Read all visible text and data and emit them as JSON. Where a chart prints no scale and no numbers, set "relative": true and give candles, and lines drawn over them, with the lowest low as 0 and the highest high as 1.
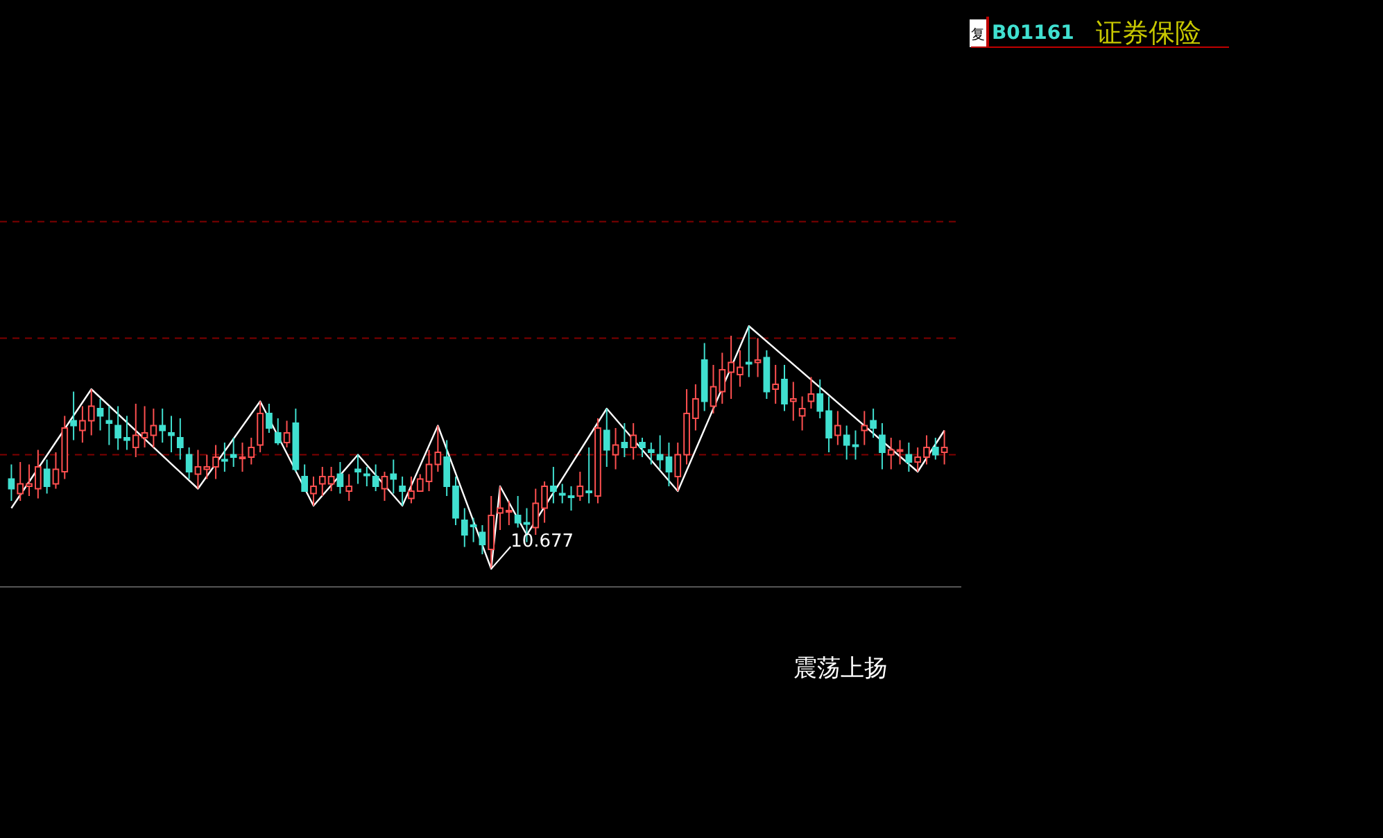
{
  "chart_data": {
    "type": "candlestick",
    "title": "证券保险",
    "subtitle": "B01161",
    "relative": true,
    "categories": [
      null,
      null,
      null,
      null,
      null,
      null,
      null,
      null,
      null,
      null,
      null,
      null,
      null,
      null,
      null,
      null,
      null,
      null,
      null,
      null,
      null,
      null,
      null,
      null,
      null,
      null,
      null,
      null,
      null,
      null,
      null,
      null,
      null,
      null,
      null,
      null,
      null,
      null,
      null,
      null,
      null,
      null,
      null,
      null,
      null,
      null,
      null,
      null,
      null,
      null,
      null,
      null,
      null,
      null,
      null,
      null,
      null,
      null,
      null,
      null,
      null,
      null,
      null,
      null,
      null,
      null,
      null,
      null,
      null,
      null,
      null,
      null,
      null,
      null,
      null,
      null,
      null,
      null,
      null,
      null,
      null,
      null,
      null,
      null,
      null,
      null,
      null,
      null,
      null,
      null,
      null,
      null,
      null,
      null,
      null,
      null,
      null,
      null,
      null,
      null,
      null,
      null,
      null,
      null,
      null,
      null
    ],
    "ohlc": [
      [
        0.37,
        0.43,
        0.28,
        0.33
      ],
      [
        0.31,
        0.44,
        0.28,
        0.35
      ],
      [
        0.34,
        0.43,
        0.3,
        0.35
      ],
      [
        0.33,
        0.49,
        0.29,
        0.42
      ],
      [
        0.41,
        0.45,
        0.31,
        0.34
      ],
      [
        0.35,
        0.48,
        0.33,
        0.41
      ],
      [
        0.4,
        0.63,
        0.37,
        0.58
      ],
      [
        0.61,
        0.73,
        0.53,
        0.59
      ],
      [
        0.57,
        0.67,
        0.52,
        0.61
      ],
      [
        0.61,
        0.74,
        0.55,
        0.67
      ],
      [
        0.66,
        0.7,
        0.57,
        0.63
      ],
      [
        0.61,
        0.67,
        0.51,
        0.6
      ],
      [
        0.59,
        0.67,
        0.49,
        0.54
      ],
      [
        0.54,
        0.63,
        0.49,
        0.53
      ],
      [
        0.5,
        0.68,
        0.46,
        0.55
      ],
      [
        0.54,
        0.67,
        0.5,
        0.56
      ],
      [
        0.55,
        0.66,
        0.5,
        0.59
      ],
      [
        0.59,
        0.66,
        0.52,
        0.57
      ],
      [
        0.56,
        0.63,
        0.48,
        0.55
      ],
      [
        0.54,
        0.62,
        0.45,
        0.5
      ],
      [
        0.47,
        0.5,
        0.37,
        0.4
      ],
      [
        0.39,
        0.49,
        0.33,
        0.42
      ],
      [
        0.41,
        0.47,
        0.37,
        0.42
      ],
      [
        0.42,
        0.51,
        0.37,
        0.46
      ],
      [
        0.45,
        0.52,
        0.4,
        0.45
      ],
      [
        0.47,
        0.54,
        0.42,
        0.46
      ],
      [
        0.46,
        0.52,
        0.4,
        0.46
      ],
      [
        0.46,
        0.54,
        0.43,
        0.5
      ],
      [
        0.51,
        0.69,
        0.48,
        0.64
      ],
      [
        0.64,
        0.68,
        0.56,
        0.58
      ],
      [
        0.56,
        0.62,
        0.51,
        0.52
      ],
      [
        0.52,
        0.61,
        0.5,
        0.56
      ],
      [
        0.6,
        0.66,
        0.4,
        0.41
      ],
      [
        0.38,
        0.43,
        0.32,
        0.32
      ],
      [
        0.31,
        0.38,
        0.26,
        0.34
      ],
      [
        0.35,
        0.42,
        0.3,
        0.38
      ],
      [
        0.35,
        0.42,
        0.32,
        0.38
      ],
      [
        0.39,
        0.44,
        0.31,
        0.34
      ],
      [
        0.32,
        0.39,
        0.28,
        0.34
      ],
      [
        0.41,
        0.47,
        0.35,
        0.4
      ],
      [
        0.39,
        0.42,
        0.34,
        0.39
      ],
      [
        0.38,
        0.43,
        0.32,
        0.34
      ],
      [
        0.33,
        0.4,
        0.28,
        0.38
      ],
      [
        0.39,
        0.45,
        0.31,
        0.37
      ],
      [
        0.34,
        0.38,
        0.26,
        0.32
      ],
      [
        0.29,
        0.38,
        0.27,
        0.32
      ],
      [
        0.32,
        0.39,
        0.32,
        0.37
      ],
      [
        0.36,
        0.49,
        0.32,
        0.43
      ],
      [
        0.43,
        0.59,
        0.4,
        0.48
      ],
      [
        0.46,
        0.53,
        0.3,
        0.34
      ],
      [
        0.34,
        0.38,
        0.18,
        0.21
      ],
      [
        0.2,
        0.25,
        0.09,
        0.14
      ],
      [
        0.18,
        0.21,
        0.11,
        0.18
      ],
      [
        0.15,
        0.18,
        0.06,
        0.1
      ],
      [
        0.08,
        0.3,
        0.0,
        0.22
      ],
      [
        0.23,
        0.34,
        0.16,
        0.25
      ],
      [
        0.24,
        0.28,
        0.18,
        0.24
      ],
      [
        0.22,
        0.3,
        0.17,
        0.19
      ],
      [
        0.19,
        0.25,
        0.11,
        0.19
      ],
      [
        0.17,
        0.33,
        0.14,
        0.27
      ],
      [
        0.25,
        0.36,
        0.19,
        0.34
      ],
      [
        0.34,
        0.42,
        0.27,
        0.32
      ],
      [
        0.31,
        0.35,
        0.27,
        0.31
      ],
      [
        0.3,
        0.34,
        0.24,
        0.3
      ],
      [
        0.3,
        0.4,
        0.28,
        0.34
      ],
      [
        0.32,
        0.5,
        0.27,
        0.32
      ],
      [
        0.3,
        0.62,
        0.27,
        0.58
      ],
      [
        0.57,
        0.66,
        0.42,
        0.49
      ],
      [
        0.47,
        0.58,
        0.41,
        0.51
      ],
      [
        0.52,
        0.6,
        0.46,
        0.5
      ],
      [
        0.5,
        0.6,
        0.45,
        0.55
      ],
      [
        0.52,
        0.54,
        0.46,
        0.5
      ],
      [
        0.49,
        0.52,
        0.43,
        0.48
      ],
      [
        0.47,
        0.55,
        0.41,
        0.45
      ],
      [
        0.46,
        0.52,
        0.34,
        0.4
      ],
      [
        0.38,
        0.52,
        0.32,
        0.47
      ],
      [
        0.47,
        0.74,
        0.43,
        0.64
      ],
      [
        0.62,
        0.76,
        0.57,
        0.7
      ],
      [
        0.86,
        0.93,
        0.65,
        0.69
      ],
      [
        0.67,
        0.84,
        0.64,
        0.75
      ],
      [
        0.73,
        0.89,
        0.68,
        0.82
      ],
      [
        0.81,
        0.96,
        0.7,
        0.85
      ],
      [
        0.8,
        0.9,
        0.75,
        0.83
      ],
      [
        0.85,
        1.0,
        0.79,
        0.85
      ],
      [
        0.85,
        0.95,
        0.79,
        0.86
      ],
      [
        0.87,
        0.9,
        0.7,
        0.73
      ],
      [
        0.74,
        0.84,
        0.68,
        0.76
      ],
      [
        0.78,
        0.84,
        0.65,
        0.68
      ],
      [
        0.69,
        0.77,
        0.61,
        0.7
      ],
      [
        0.63,
        0.71,
        0.57,
        0.66
      ],
      [
        0.69,
        0.79,
        0.66,
        0.72
      ],
      [
        0.72,
        0.78,
        0.62,
        0.65
      ],
      [
        0.65,
        0.71,
        0.48,
        0.54
      ],
      [
        0.55,
        0.65,
        0.51,
        0.59
      ],
      [
        0.55,
        0.59,
        0.45,
        0.51
      ],
      [
        0.51,
        0.57,
        0.45,
        0.51
      ],
      [
        0.57,
        0.65,
        0.51,
        0.59
      ],
      [
        0.61,
        0.66,
        0.54,
        0.58
      ],
      [
        0.55,
        0.6,
        0.41,
        0.48
      ],
      [
        0.47,
        0.54,
        0.41,
        0.49
      ],
      [
        0.49,
        0.53,
        0.43,
        0.49
      ],
      [
        0.47,
        0.52,
        0.4,
        0.44
      ],
      [
        0.44,
        0.5,
        0.4,
        0.46
      ],
      [
        0.46,
        0.55,
        0.43,
        0.5
      ],
      [
        0.5,
        0.54,
        0.45,
        0.47
      ],
      [
        0.48,
        0.57,
        0.43,
        0.5
      ]
    ],
    "colors": [
      "#40e0d0",
      "#ff5050",
      "#ff5050",
      "#ff5050",
      "#40e0d0",
      "#ff5050",
      "#ff5050",
      "#40e0d0",
      "#ff5050",
      "#ff5050",
      "#40e0d0",
      "#40e0d0",
      "#40e0d0",
      "#40e0d0",
      "#ff5050",
      "#ff5050",
      "#ff5050",
      "#40e0d0",
      "#40e0d0",
      "#40e0d0",
      "#40e0d0",
      "#ff5050",
      "#ff5050",
      "#ff5050",
      "#40e0d0",
      "#40e0d0",
      "#ff5050",
      "#ff5050",
      "#ff5050",
      "#40e0d0",
      "#40e0d0",
      "#ff5050",
      "#40e0d0",
      "#40e0d0",
      "#ff5050",
      "#ff5050",
      "#ff5050",
      "#40e0d0",
      "#ff5050",
      "#40e0d0",
      "#40e0d0",
      "#40e0d0",
      "#ff5050",
      "#40e0d0",
      "#40e0d0",
      "#ff5050",
      "#ff5050",
      "#ff5050",
      "#ff5050",
      "#40e0d0",
      "#40e0d0",
      "#40e0d0",
      "#40e0d0",
      "#40e0d0",
      "#ff5050",
      "#ff5050",
      "#ff5050",
      "#40e0d0",
      "#40e0d0",
      "#ff5050",
      "#ff5050",
      "#40e0d0",
      "#40e0d0",
      "#40e0d0",
      "#ff5050",
      "#40e0d0",
      "#ff5050",
      "#40e0d0",
      "#ff5050",
      "#40e0d0",
      "#ff5050",
      "#40e0d0",
      "#40e0d0",
      "#40e0d0",
      "#40e0d0",
      "#ff5050",
      "#ff5050",
      "#ff5050",
      "#40e0d0",
      "#ff5050",
      "#ff5050",
      "#ff5050",
      "#ff5050",
      "#40e0d0",
      "#ff5050",
      "#40e0d0",
      "#ff5050",
      "#40e0d0",
      "#ff5050",
      "#ff5050",
      "#ff5050",
      "#40e0d0",
      "#40e0d0",
      "#ff5050",
      "#40e0d0",
      "#40e0d0",
      "#ff5050",
      "#40e0d0",
      "#40e0d0",
      "#ff5050",
      "#ff5050",
      "#40e0d0",
      "#ff5050",
      "#ff5050",
      "#40e0d0",
      "#ff5050"
    ],
    "series": [
      {
        "type": "line",
        "color": "#ffffff",
        "values": [
          0.25,
          null,
          null,
          null,
          null,
          null,
          null,
          null,
          null,
          0.74,
          null,
          null,
          null,
          null,
          null,
          null,
          null,
          null,
          null,
          null,
          null,
          0.33,
          null,
          null,
          null,
          null,
          null,
          null,
          0.69,
          null,
          null,
          null,
          null,
          null,
          0.26,
          null,
          null,
          null,
          null,
          0.47,
          null,
          null,
          null,
          null,
          0.26,
          null,
          null,
          null,
          0.59,
          null,
          null,
          null,
          null,
          null,
          0.0,
          0.34,
          null,
          null,
          0.14,
          null,
          null,
          null,
          null,
          null,
          null,
          null,
          null,
          0.66,
          null,
          null,
          null,
          null,
          null,
          null,
          null,
          0.32,
          null,
          null,
          null,
          null,
          null,
          null,
          null,
          1.0,
          null,
          null,
          null,
          null,
          null,
          null,
          null,
          null,
          null,
          null,
          null,
          null,
          null,
          null,
          null,
          null,
          null,
          null,
          0.4,
          null,
          null,
          0.57
        ]
      }
    ],
    "ref_lines": [
      {
        "axis": "y",
        "value": 1.43,
        "color": "#800000",
        "line_style": "dashed"
      },
      {
        "axis": "y",
        "value": 0.95,
        "color": "#800000",
        "line_style": "dashed"
      },
      {
        "axis": "y",
        "value": 0.47,
        "color": "#800000",
        "line_style": "dashed"
      }
    ],
    "annotations": [
      "10.677",
      "震荡上扬",
      "复"
    ],
    "grid": false
  }
}
